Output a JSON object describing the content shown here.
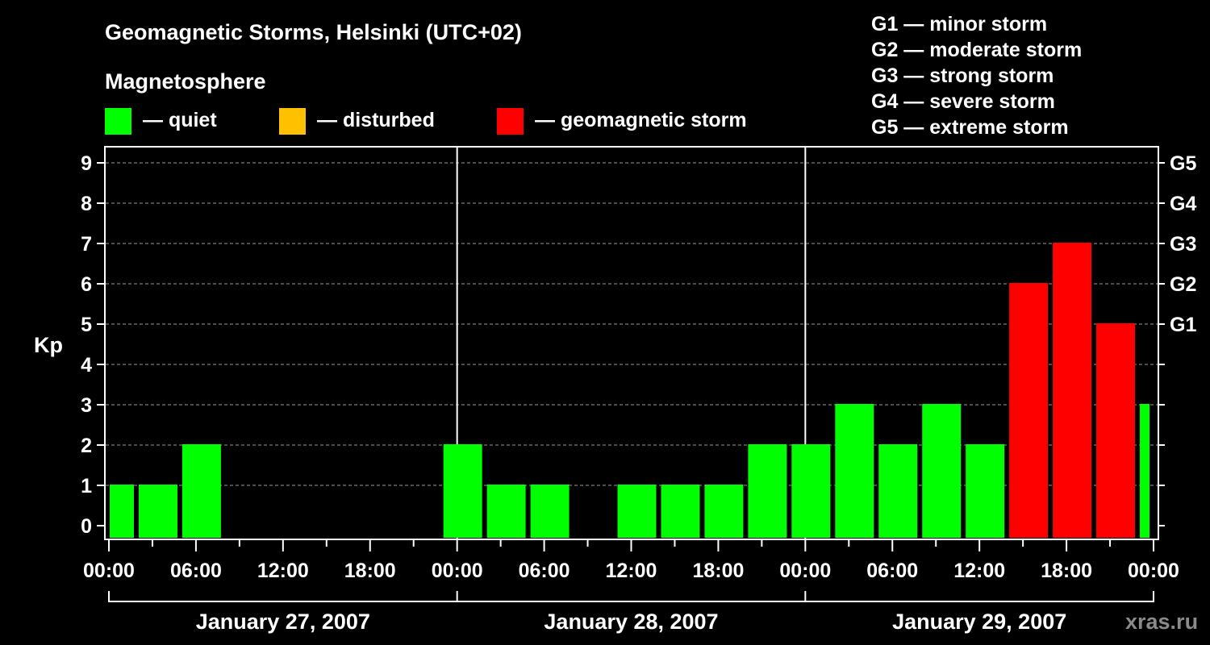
{
  "title": "Geomagnetic Storms, Helsinki (UTC+02)",
  "magnetosphere_label": "Magnetosphere",
  "legend": [
    {
      "label": "— quiet",
      "color": "#00ff00"
    },
    {
      "label": "— disturbed",
      "color": "#ffc000"
    },
    {
      "label": "— geomagnetic storm",
      "color": "#ff0000"
    }
  ],
  "storm_scale": [
    "G1 — minor storm",
    "G2 — moderate storm",
    "G3 — strong storm",
    "G4 — severe storm",
    "G5 — extreme storm"
  ],
  "watermark": "xras.ru",
  "chart_data": {
    "type": "bar",
    "title": "Geomagnetic Storms, Helsinki (UTC+02)",
    "ylabel": "Kp",
    "ylim": [
      0,
      9
    ],
    "yticks": [
      "0",
      "1",
      "2",
      "3",
      "4",
      "5",
      "6",
      "7",
      "8",
      "9"
    ],
    "right_ticks": [
      {
        "kp": 5,
        "label": "G1"
      },
      {
        "kp": 6,
        "label": "G2"
      },
      {
        "kp": 7,
        "label": "G3"
      },
      {
        "kp": 8,
        "label": "G4"
      },
      {
        "kp": 9,
        "label": "G5"
      }
    ],
    "xticks": [
      "00:00",
      "06:00",
      "12:00",
      "18:00",
      "00:00",
      "06:00",
      "12:00",
      "18:00",
      "00:00",
      "06:00",
      "12:00",
      "18:00",
      "00:00"
    ],
    "dates": [
      "January 27, 2007",
      "January 28, 2007",
      "January 29, 2007"
    ],
    "grid": true,
    "colors": {
      "quiet": "#00ff00",
      "disturbed": "#ffc000",
      "storm": "#ff0000"
    },
    "bars": [
      {
        "start_hour": 0,
        "end_hour": 2,
        "kp": 1,
        "level": "quiet"
      },
      {
        "start_hour": 2,
        "end_hour": 5,
        "kp": 1,
        "level": "quiet"
      },
      {
        "start_hour": 5,
        "end_hour": 8,
        "kp": 2,
        "level": "quiet"
      },
      {
        "start_hour": 23,
        "end_hour": 26,
        "kp": 2,
        "level": "quiet"
      },
      {
        "start_hour": 26,
        "end_hour": 29,
        "kp": 1,
        "level": "quiet"
      },
      {
        "start_hour": 29,
        "end_hour": 32,
        "kp": 1,
        "level": "quiet"
      },
      {
        "start_hour": 35,
        "end_hour": 38,
        "kp": 1,
        "level": "quiet"
      },
      {
        "start_hour": 38,
        "end_hour": 41,
        "kp": 1,
        "level": "quiet"
      },
      {
        "start_hour": 41,
        "end_hour": 44,
        "kp": 1,
        "level": "quiet"
      },
      {
        "start_hour": 44,
        "end_hour": 47,
        "kp": 2,
        "level": "quiet"
      },
      {
        "start_hour": 47,
        "end_hour": 50,
        "kp": 2,
        "level": "quiet"
      },
      {
        "start_hour": 50,
        "end_hour": 53,
        "kp": 3,
        "level": "quiet"
      },
      {
        "start_hour": 53,
        "end_hour": 56,
        "kp": 2,
        "level": "quiet"
      },
      {
        "start_hour": 56,
        "end_hour": 59,
        "kp": 3,
        "level": "quiet"
      },
      {
        "start_hour": 59,
        "end_hour": 62,
        "kp": 2,
        "level": "quiet"
      },
      {
        "start_hour": 62,
        "end_hour": 65,
        "kp": 6,
        "level": "storm"
      },
      {
        "start_hour": 65,
        "end_hour": 68,
        "kp": 7,
        "level": "storm"
      },
      {
        "start_hour": 68,
        "end_hour": 71,
        "kp": 5,
        "level": "storm"
      },
      {
        "start_hour": 71,
        "end_hour": 72,
        "kp": 3,
        "level": "quiet"
      }
    ]
  }
}
